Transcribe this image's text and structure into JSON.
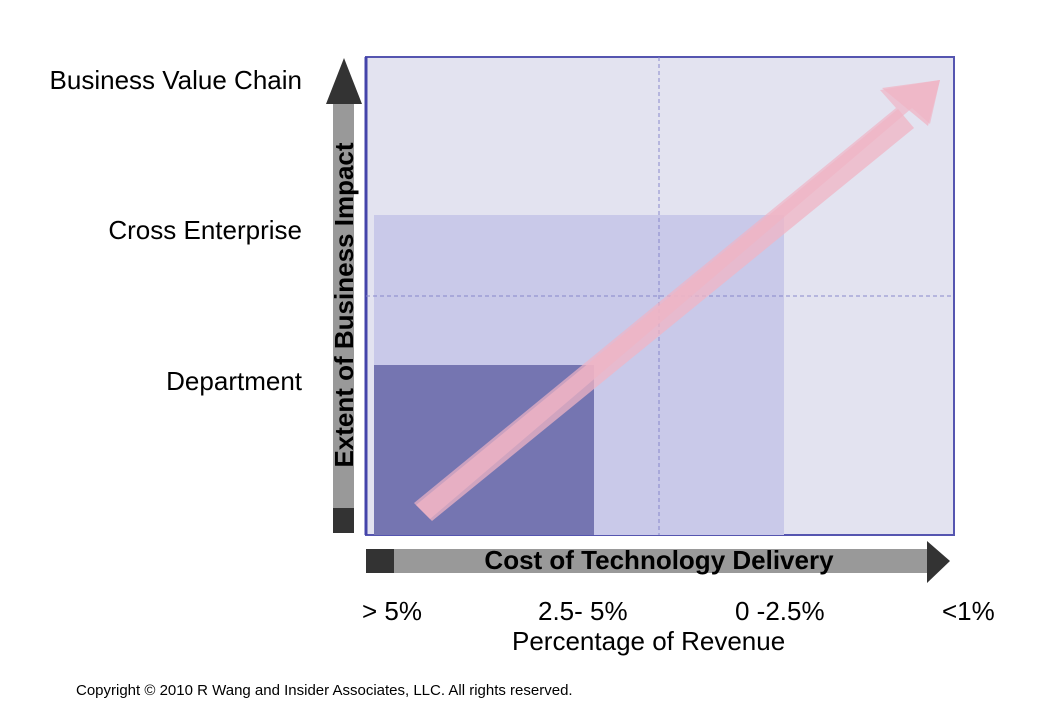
{
  "diagram": {
    "y_axis": {
      "title": "Extent of Business Impact",
      "levels": [
        "Department",
        "Cross Enterprise",
        "Business Value Chain"
      ]
    },
    "x_axis": {
      "title": "Cost of Technology Delivery",
      "ticks": [
        "> 5%",
        "2.5- 5%",
        "0 -2.5%",
        "<1%"
      ],
      "subtitle": "Percentage of Revenue"
    },
    "colors": {
      "plot_background": "#e3e3f0",
      "plot_border": "#5555b0",
      "region_cross_enterprise": "#c9c9e9",
      "region_department": "#7575b1",
      "trend_arrow": "#f0b4c4",
      "axis_arrow_dark": "#333333",
      "axis_arrow_light": "#999999",
      "gridline": "#8888cc"
    }
  },
  "footer": {
    "copyright": "Copyright © 2010 R Wang and Insider Associates, LLC. All rights reserved."
  }
}
